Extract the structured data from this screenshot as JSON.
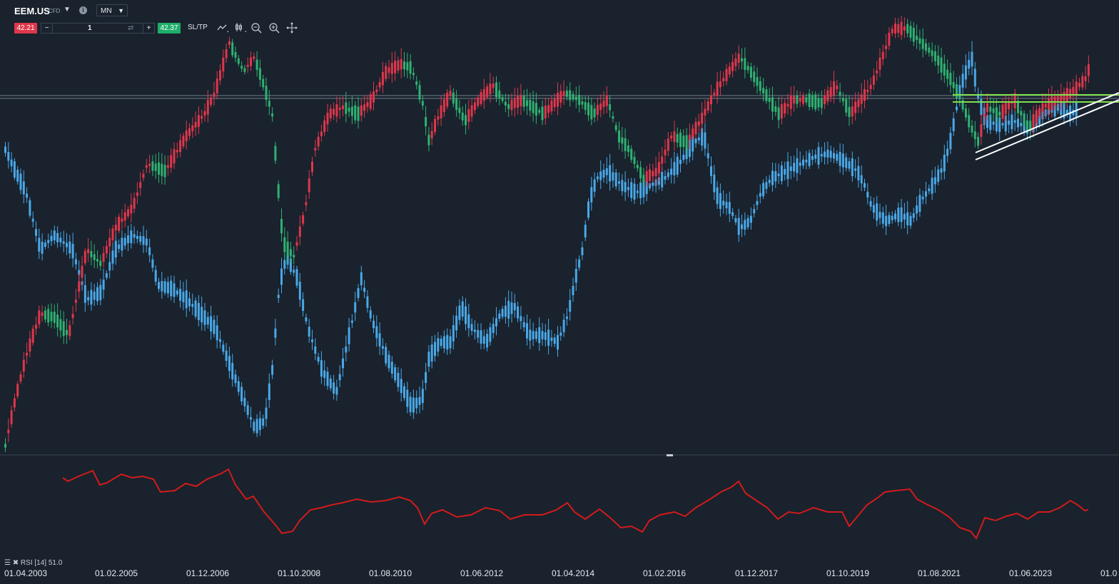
{
  "toolbar": {
    "symbol": "EEM.US",
    "symbol_type": "CFD",
    "info_icon": "i",
    "timeframe": "MN",
    "sell_price": "42.21",
    "buy_price": "42.37",
    "volume": "1",
    "sltp_label": "SL/TP",
    "icons": [
      "line-chart-icon",
      "candlestick-icon",
      "zoom-out-icon",
      "zoom-in-icon",
      "crosshair-icon"
    ]
  },
  "indicator": {
    "label": "RSI [14] 51.0"
  },
  "xaxis_labels": [
    "01.04.2003",
    "01.02.2005",
    "01.12.2006",
    "01.10.2008",
    "01.08.2010",
    "01.06.2012",
    "01.04.2014",
    "01.02.2016",
    "01.12.2017",
    "01.10.2019",
    "01.08.2021",
    "01.06.2023",
    "01.0"
  ],
  "colors": {
    "bull": "#2fb171",
    "bear": "#e0364b",
    "blue_candles": "#4aa8e8",
    "rsi": "#d21b1b",
    "trendline": "#ffffff",
    "hline": "#7ee04a",
    "background": "#19222d"
  },
  "chart_data": {
    "type": "candlestick",
    "series": [
      {
        "name": "EEM.US"
      },
      {
        "name": "RSI [14]"
      }
    ]
  }
}
